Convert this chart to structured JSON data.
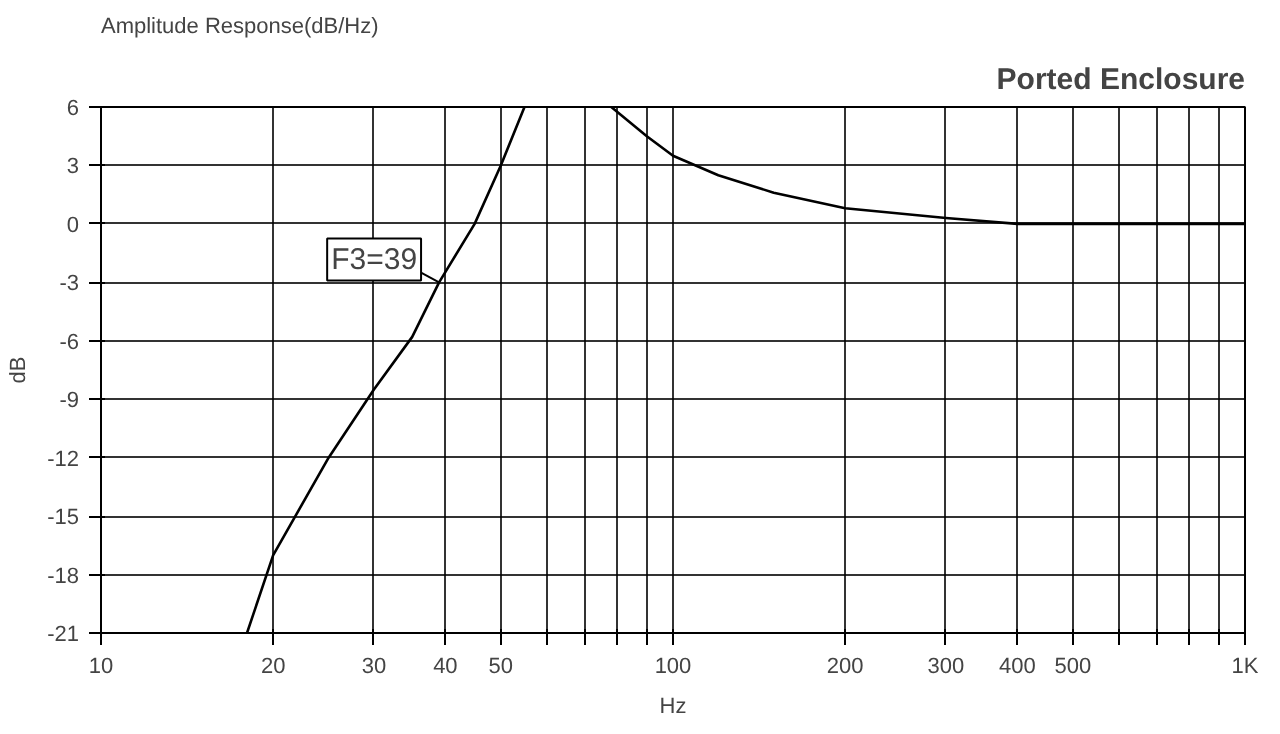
{
  "chart_data": {
    "type": "line",
    "title": "Amplitude Response(dB/Hz)",
    "subtitle": "Ported Enclosure",
    "xlabel": "Hz",
    "ylabel": "dB",
    "log": "x",
    "xlim": [
      10,
      1000
    ],
    "ylim": [
      -21,
      6
    ],
    "xticks": [
      10,
      20,
      30,
      40,
      50,
      {
        "value": 60,
        "label": null
      },
      {
        "value": 70,
        "label": null
      },
      {
        "value": 80,
        "label": null
      },
      {
        "value": 90,
        "label": null
      },
      100,
      200,
      300,
      400,
      500,
      {
        "value": 600,
        "label": null
      },
      {
        "value": 700,
        "label": null
      },
      {
        "value": 800,
        "label": null
      },
      {
        "value": 900,
        "label": null
      },
      {
        "value": 1000,
        "label": "1K"
      }
    ],
    "yticks": [
      -21,
      -18,
      -15,
      -12,
      -9,
      -6,
      -3,
      0,
      3,
      6
    ],
    "grid": true,
    "marker": "none",
    "line_style": "solid",
    "series": [
      {
        "color": "#000000",
        "x": [
          18,
          20,
          25,
          30,
          35,
          39,
          45,
          50,
          55,
          66,
          78,
          90,
          100,
          120,
          150,
          200,
          300,
          400,
          1000
        ],
        "values": [
          -21,
          -17,
          -12,
          -8.5,
          -5.8,
          -3,
          0,
          3,
          6,
          null,
          6,
          4.5,
          3.5,
          2.5,
          1.6,
          0.8,
          0.3,
          0,
          0
        ]
      }
    ],
    "annotations": [
      {
        "text": "F3=39",
        "x": 39,
        "y": -3
      }
    ]
  }
}
